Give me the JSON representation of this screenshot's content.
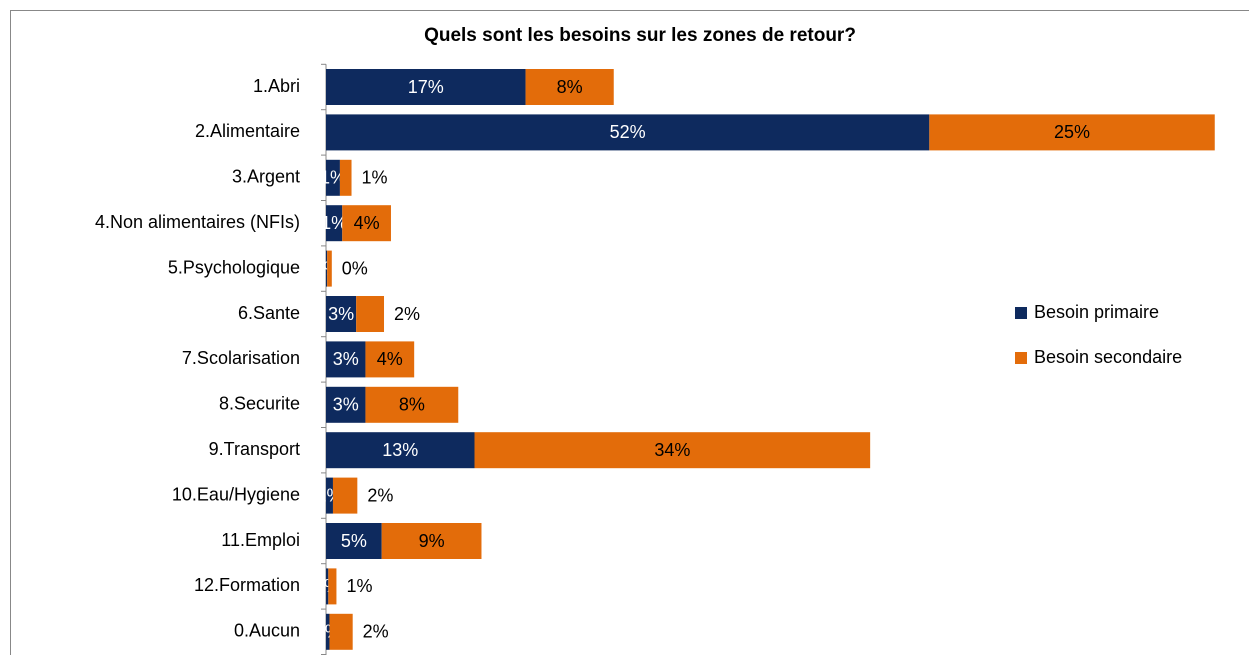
{
  "chart_data": {
    "type": "stacked-bar-horizontal",
    "title": "Quels sont les besoins sur les zones de retour?",
    "categories": [
      "1.Abri",
      "2.Alimentaire",
      "3.Argent",
      "4.Non alimentaires (NFIs)",
      "5.Psychologique",
      "6.Sante",
      "7.Scolarisation",
      "8.Securite",
      "9.Transport",
      "10.Eau/Hygiene",
      "11.Emploi",
      "12.Formation",
      "0.Aucun"
    ],
    "series": [
      {
        "name": "Besoin primaire",
        "color": "#0e2a5e",
        "values": [
          17.2,
          52,
          1.2,
          1.4,
          0.1,
          2.6,
          3.4,
          3.4,
          12.8,
          0.6,
          4.8,
          0.2,
          0.3
        ],
        "value_labels": [
          "17%",
          "52%",
          "1%",
          "1%",
          "0%",
          "3%",
          "3%",
          "3%",
          "13%",
          "1%",
          "5%",
          "0%",
          "0%"
        ]
      },
      {
        "name": "Besoin secondaire",
        "color": "#e36c0a",
        "values": [
          7.6,
          24.6,
          1.0,
          4.2,
          0.4,
          2.4,
          4.2,
          8.0,
          34.1,
          2.1,
          8.6,
          0.7,
          2.0
        ],
        "value_labels": [
          "8%",
          "25%",
          "1%",
          "4%",
          "0%",
          "2%",
          "4%",
          "8%",
          "34%",
          "2%",
          "9%",
          "1%",
          "2%"
        ]
      }
    ],
    "xlim": [
      0,
      78
    ],
    "legend": "right"
  }
}
